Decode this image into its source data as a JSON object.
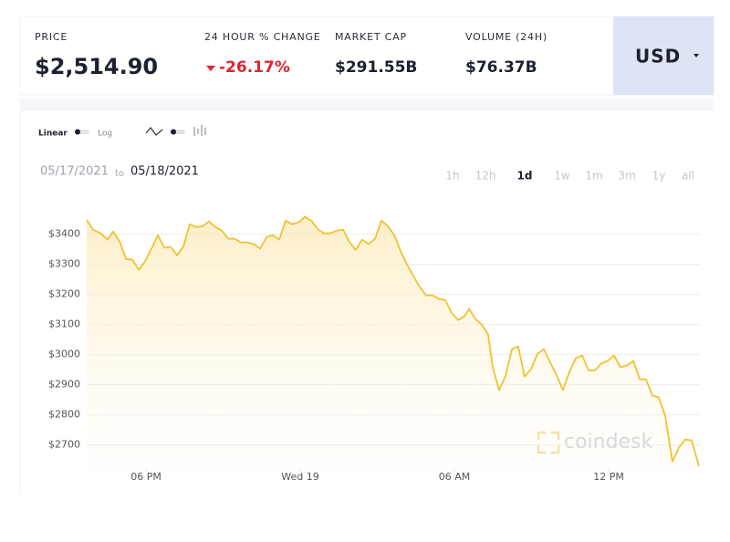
{
  "header": {
    "price_label": "PRICE",
    "price": "$2,514.90",
    "change_label": "24 HOUR % CHANGE",
    "change": "-26.17%",
    "market_cap_label": "MARKET CAP",
    "market_cap": "$291.55B",
    "volume_label": "VOLUME (24H)",
    "volume": "$76.37B",
    "currency": "USD"
  },
  "toolbar": {
    "linear": "Linear",
    "log": "Log",
    "from": "05/17/2021",
    "to": "to",
    "until": "05/18/2021",
    "ranges": [
      "1h",
      "12h",
      "1d",
      "1w",
      "1m",
      "3m",
      "1y",
      "all"
    ]
  },
  "watermark": "coindesk",
  "chart_data": {
    "type": "line",
    "color": "#f2c12e",
    "x": [
      15.69,
      15.94,
      16.23,
      16.51,
      16.72,
      16.97,
      17.22,
      17.47,
      17.72,
      17.96,
      18.21,
      18.46,
      18.71,
      18.96,
      19.21,
      19.46,
      19.7,
      19.95,
      20.2,
      20.45,
      20.7,
      20.95,
      21.19,
      21.44,
      21.69,
      21.94,
      22.19,
      22.44,
      22.69,
      22.93,
      23.18,
      23.43,
      23.68,
      23.93,
      24.18,
      24.43,
      24.67,
      24.92,
      25.17,
      25.42,
      25.67,
      25.92,
      26.16,
      26.41,
      26.66,
      26.91,
      27.16,
      27.41,
      27.66,
      27.9,
      28.15,
      28.4,
      28.65,
      28.9,
      29.15,
      29.4,
      29.64,
      29.89,
      30.14,
      30.39,
      30.57,
      30.82,
      31.06,
      31.31,
      31.49,
      31.74,
      31.99,
      32.24,
      32.48,
      32.73,
      32.98,
      33.23,
      33.48,
      33.73,
      33.97,
      34.22,
      34.47,
      34.72,
      34.97,
      35.22,
      35.47,
      35.71,
      35.96,
      36.21,
      36.46,
      36.71,
      36.96,
      37.21,
      37.45,
      37.7,
      37.95,
      38.2,
      38.48,
      38.73,
      38.98,
      39.23,
      39.51
    ],
    "values": [
      3448,
      3415,
      3403,
      3382,
      3409,
      3376,
      3318,
      3315,
      3282,
      3309,
      3352,
      3397,
      3355,
      3358,
      3330,
      3361,
      3433,
      3424,
      3427,
      3442,
      3424,
      3412,
      3385,
      3385,
      3373,
      3373,
      3367,
      3352,
      3391,
      3397,
      3382,
      3445,
      3433,
      3439,
      3458,
      3445,
      3418,
      3403,
      3403,
      3412,
      3415,
      3373,
      3348,
      3382,
      3367,
      3385,
      3445,
      3427,
      3397,
      3345,
      3300,
      3261,
      3224,
      3197,
      3197,
      3185,
      3182,
      3139,
      3115,
      3127,
      3152,
      3118,
      3100,
      3067,
      2958,
      2882,
      2930,
      3018,
      3027,
      2927,
      2952,
      3003,
      3018,
      2973,
      2933,
      2882,
      2942,
      2988,
      2997,
      2948,
      2948,
      2970,
      2979,
      2997,
      2958,
      2964,
      2979,
      2918,
      2918,
      2864,
      2858,
      2797,
      2645,
      2691,
      2718,
      2715,
      2630
    ],
    "xlim": [
      15.69,
      39.55
    ],
    "xticks": [
      {
        "value": 18,
        "label": "06 PM"
      },
      {
        "value": 24,
        "label": "Wed 19"
      },
      {
        "value": 30,
        "label": "06 AM"
      },
      {
        "value": 36,
        "label": "12 PM"
      }
    ],
    "ylim": [
      2620,
      3490
    ],
    "yticks": [
      {
        "value": 2700,
        "label": "$2700"
      },
      {
        "value": 2800,
        "label": "$2800"
      },
      {
        "value": 2900,
        "label": "$2900"
      },
      {
        "value": 3000,
        "label": "$3000"
      },
      {
        "value": 3100,
        "label": "$3100"
      },
      {
        "value": 3200,
        "label": "$3200"
      },
      {
        "value": 3300,
        "label": "$3300"
      },
      {
        "value": 3400,
        "label": "$3400"
      }
    ],
    "grid": true
  }
}
